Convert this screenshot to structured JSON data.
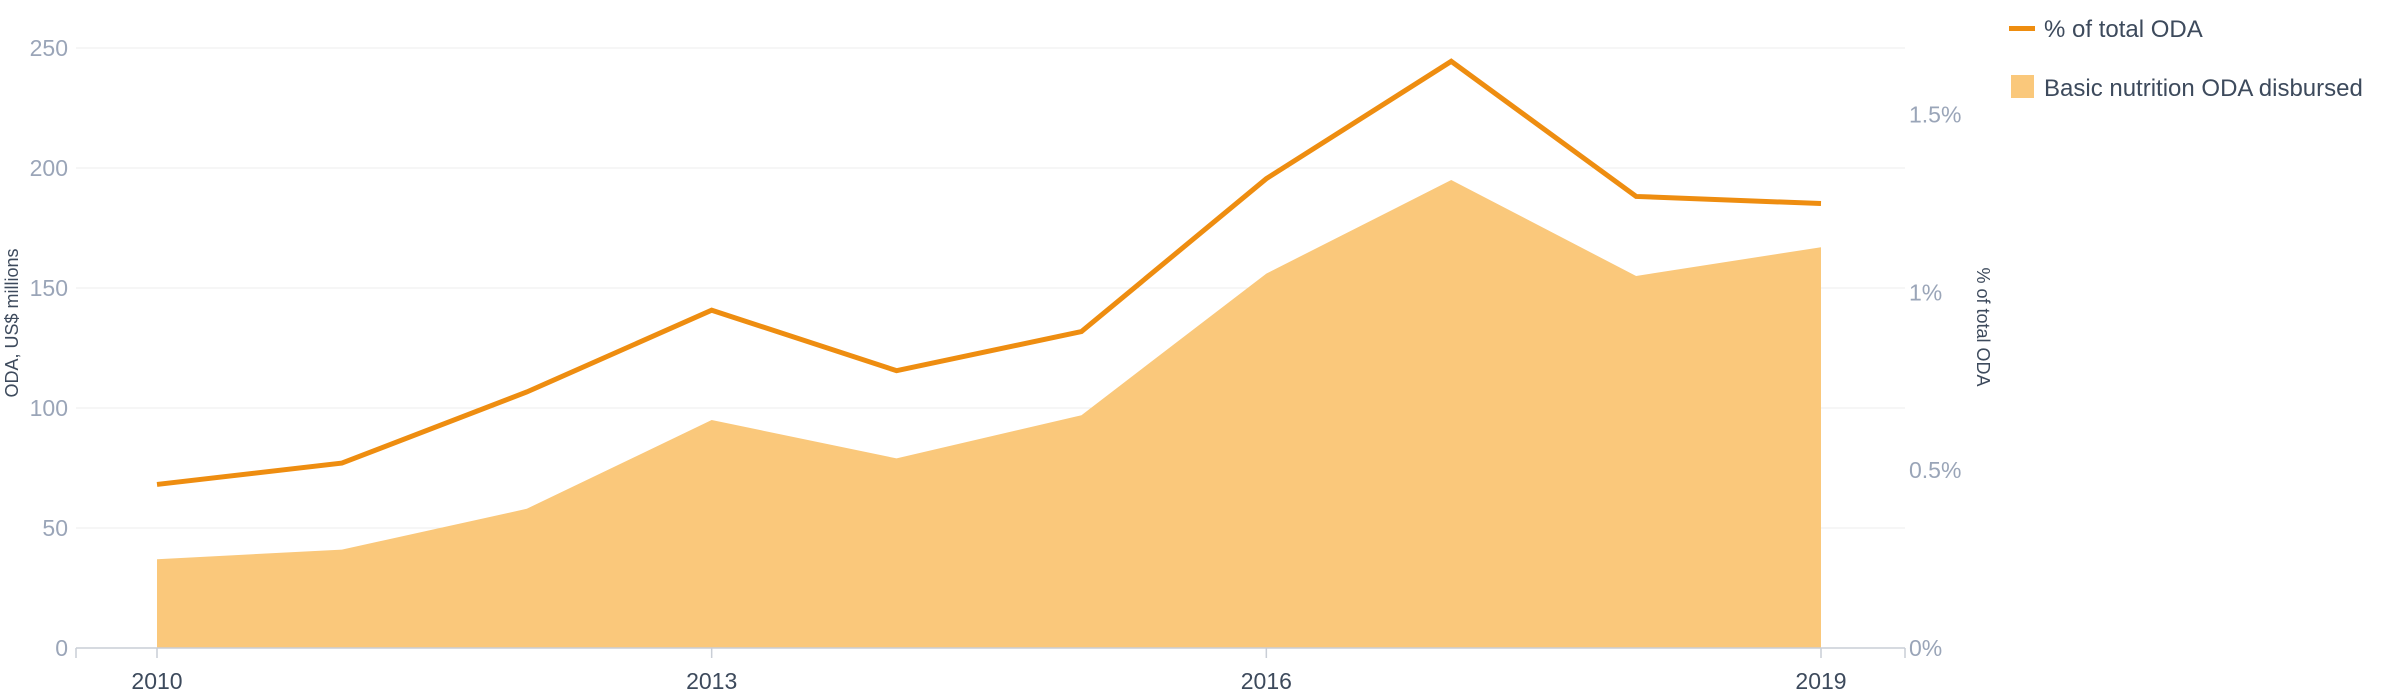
{
  "chart_data": {
    "type": "area",
    "x": [
      2010,
      2011,
      2012,
      2013,
      2014,
      2015,
      2016,
      2017,
      2018,
      2019
    ],
    "xticks": [
      "2010",
      "2013",
      "2016",
      "2019"
    ],
    "series": [
      {
        "name": "Basic nutrition ODA disbursed",
        "type": "area",
        "axis": "left",
        "color": "#fac87b",
        "values": [
          37,
          41,
          58,
          95,
          79,
          97,
          156,
          195,
          155,
          167
        ]
      },
      {
        "name": "% of total ODA",
        "type": "line",
        "axis": "right",
        "color": "#ee8d10",
        "values": [
          0.46,
          0.52,
          0.72,
          0.95,
          0.78,
          0.89,
          1.32,
          1.65,
          1.27,
          1.25
        ]
      }
    ],
    "left_axis": {
      "label": "ODA, US$ millions",
      "ylim": [
        0,
        250
      ],
      "ticks": [
        0,
        50,
        100,
        150,
        200,
        250
      ],
      "tick_labels": [
        "0",
        "50",
        "100",
        "150",
        "200",
        "250"
      ]
    },
    "right_axis": {
      "label": "% of total ODA",
      "ylim": [
        0,
        1.6875
      ],
      "ticks": [
        0,
        0.5,
        1,
        1.5
      ],
      "tick_labels": [
        "0%",
        "0.5%",
        "1%",
        "1.5%"
      ]
    },
    "grid": true,
    "legend_position": "top-right",
    "legend": [
      {
        "label": "% of total ODA",
        "marker": "line",
        "color": "#ee8d10"
      },
      {
        "label": "Basic nutrition ODA disbursed",
        "marker": "square",
        "color": "#fac87b"
      }
    ]
  }
}
